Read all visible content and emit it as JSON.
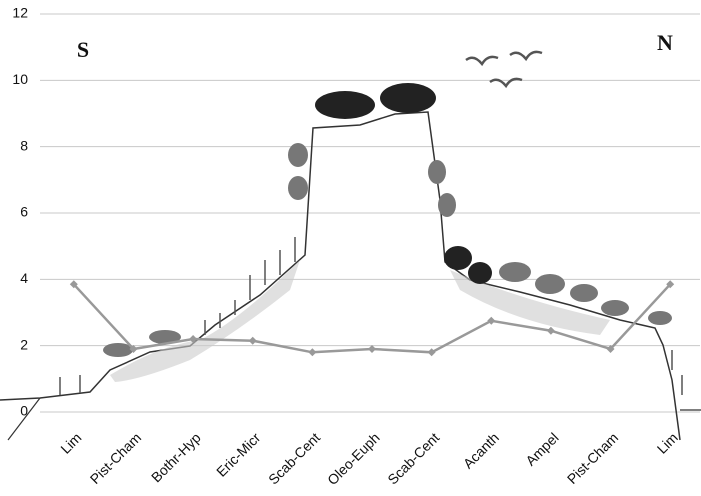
{
  "chart_data": {
    "type": "line",
    "categories": [
      "Lim",
      "Pist-Cham",
      "Bothr-Hyp",
      "Eric-Micr",
      "Scab-Cent",
      "Oleo-Euph",
      "Scab-Cent",
      "Acanth",
      "Ampel",
      "Pist-Cham",
      "Lim"
    ],
    "values": [
      3.85,
      1.9,
      2.2,
      2.15,
      1.8,
      1.9,
      1.8,
      2.75,
      2.45,
      1.9,
      3.85
    ],
    "color": "#999999",
    "ylim": [
      0,
      12
    ],
    "yticks": [
      0,
      2,
      4,
      6,
      8,
      10,
      12
    ],
    "grid": true,
    "annotations": [
      "S",
      "N"
    ]
  }
}
